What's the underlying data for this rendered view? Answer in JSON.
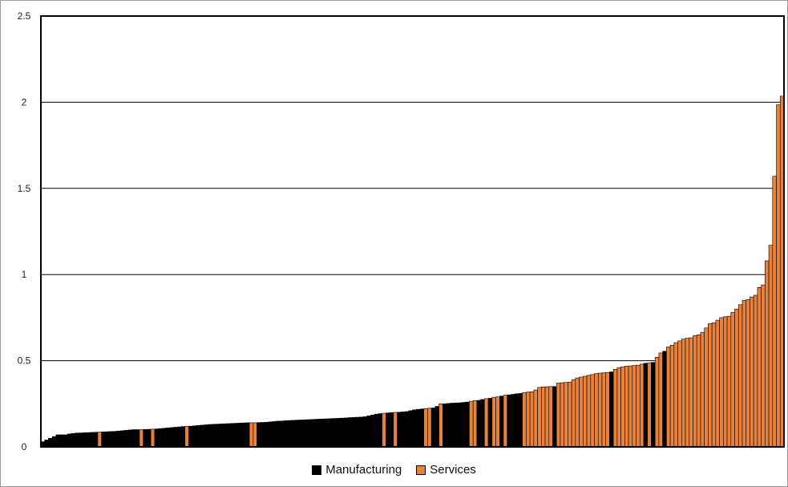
{
  "chart_data": {
    "type": "bar",
    "ylim": [
      0,
      2.5
    ],
    "yticks": [
      "0",
      "0.5",
      "1",
      "1.5",
      "2",
      "2.5"
    ],
    "grid": true,
    "legend_position": "bottom-center",
    "series": [
      {
        "name": "Manufacturing",
        "color": "#000000"
      },
      {
        "name": "Services",
        "color": "#e8823a"
      }
    ],
    "bars": [
      {
        "s": 0,
        "v": 0.03
      },
      {
        "s": 0,
        "v": 0.04
      },
      {
        "s": 0,
        "v": 0.05
      },
      {
        "s": 0,
        "v": 0.06
      },
      {
        "s": 0,
        "v": 0.07
      },
      {
        "s": 0,
        "v": 0.07
      },
      {
        "s": 0,
        "v": 0.07
      },
      {
        "s": 0,
        "v": 0.075
      },
      {
        "s": 0,
        "v": 0.078
      },
      {
        "s": 0,
        "v": 0.08
      },
      {
        "s": 0,
        "v": 0.081
      },
      {
        "s": 0,
        "v": 0.082
      },
      {
        "s": 0,
        "v": 0.083
      },
      {
        "s": 0,
        "v": 0.084
      },
      {
        "s": 0,
        "v": 0.085
      },
      {
        "s": 1,
        "v": 0.086
      },
      {
        "s": 0,
        "v": 0.087
      },
      {
        "s": 0,
        "v": 0.088
      },
      {
        "s": 0,
        "v": 0.089
      },
      {
        "s": 0,
        "v": 0.09
      },
      {
        "s": 0,
        "v": 0.092
      },
      {
        "s": 0,
        "v": 0.094
      },
      {
        "s": 0,
        "v": 0.096
      },
      {
        "s": 0,
        "v": 0.098
      },
      {
        "s": 0,
        "v": 0.1
      },
      {
        "s": 0,
        "v": 0.1
      },
      {
        "s": 1,
        "v": 0.1
      },
      {
        "s": 0,
        "v": 0.101
      },
      {
        "s": 0,
        "v": 0.102
      },
      {
        "s": 1,
        "v": 0.103
      },
      {
        "s": 0,
        "v": 0.104
      },
      {
        "s": 0,
        "v": 0.106
      },
      {
        "s": 0,
        "v": 0.108
      },
      {
        "s": 0,
        "v": 0.11
      },
      {
        "s": 0,
        "v": 0.112
      },
      {
        "s": 0,
        "v": 0.114
      },
      {
        "s": 0,
        "v": 0.116
      },
      {
        "s": 0,
        "v": 0.118
      },
      {
        "s": 1,
        "v": 0.12
      },
      {
        "s": 0,
        "v": 0.12
      },
      {
        "s": 0,
        "v": 0.122
      },
      {
        "s": 0,
        "v": 0.124
      },
      {
        "s": 0,
        "v": 0.126
      },
      {
        "s": 0,
        "v": 0.128
      },
      {
        "s": 0,
        "v": 0.13
      },
      {
        "s": 0,
        "v": 0.131
      },
      {
        "s": 0,
        "v": 0.132
      },
      {
        "s": 0,
        "v": 0.133
      },
      {
        "s": 0,
        "v": 0.134
      },
      {
        "s": 0,
        "v": 0.135
      },
      {
        "s": 0,
        "v": 0.136
      },
      {
        "s": 0,
        "v": 0.137
      },
      {
        "s": 0,
        "v": 0.138
      },
      {
        "s": 0,
        "v": 0.139
      },
      {
        "s": 0,
        "v": 0.14
      },
      {
        "s": 1,
        "v": 0.14
      },
      {
        "s": 1,
        "v": 0.14
      },
      {
        "s": 0,
        "v": 0.141
      },
      {
        "s": 0,
        "v": 0.142
      },
      {
        "s": 0,
        "v": 0.143
      },
      {
        "s": 0,
        "v": 0.145
      },
      {
        "s": 0,
        "v": 0.147
      },
      {
        "s": 0,
        "v": 0.149
      },
      {
        "s": 0,
        "v": 0.15
      },
      {
        "s": 0,
        "v": 0.152
      },
      {
        "s": 0,
        "v": 0.153
      },
      {
        "s": 0,
        "v": 0.154
      },
      {
        "s": 0,
        "v": 0.155
      },
      {
        "s": 0,
        "v": 0.156
      },
      {
        "s": 0,
        "v": 0.157
      },
      {
        "s": 0,
        "v": 0.158
      },
      {
        "s": 0,
        "v": 0.159
      },
      {
        "s": 0,
        "v": 0.16
      },
      {
        "s": 0,
        "v": 0.161
      },
      {
        "s": 0,
        "v": 0.162
      },
      {
        "s": 0,
        "v": 0.163
      },
      {
        "s": 0,
        "v": 0.164
      },
      {
        "s": 0,
        "v": 0.165
      },
      {
        "s": 0,
        "v": 0.166
      },
      {
        "s": 0,
        "v": 0.167
      },
      {
        "s": 0,
        "v": 0.168
      },
      {
        "s": 0,
        "v": 0.17
      },
      {
        "s": 0,
        "v": 0.171
      },
      {
        "s": 0,
        "v": 0.172
      },
      {
        "s": 0,
        "v": 0.173
      },
      {
        "s": 0,
        "v": 0.175
      },
      {
        "s": 0,
        "v": 0.18
      },
      {
        "s": 0,
        "v": 0.185
      },
      {
        "s": 0,
        "v": 0.19
      },
      {
        "s": 0,
        "v": 0.193
      },
      {
        "s": 1,
        "v": 0.195
      },
      {
        "s": 0,
        "v": 0.197
      },
      {
        "s": 0,
        "v": 0.199
      },
      {
        "s": 1,
        "v": 0.2
      },
      {
        "s": 0,
        "v": 0.201
      },
      {
        "s": 0,
        "v": 0.203
      },
      {
        "s": 0,
        "v": 0.205
      },
      {
        "s": 0,
        "v": 0.21
      },
      {
        "s": 0,
        "v": 0.215
      },
      {
        "s": 0,
        "v": 0.218
      },
      {
        "s": 0,
        "v": 0.22
      },
      {
        "s": 1,
        "v": 0.222
      },
      {
        "s": 1,
        "v": 0.224
      },
      {
        "s": 0,
        "v": 0.226
      },
      {
        "s": 0,
        "v": 0.235
      },
      {
        "s": 1,
        "v": 0.25
      },
      {
        "s": 0,
        "v": 0.25
      },
      {
        "s": 0,
        "v": 0.252
      },
      {
        "s": 0,
        "v": 0.254
      },
      {
        "s": 0,
        "v": 0.255
      },
      {
        "s": 0,
        "v": 0.256
      },
      {
        "s": 0,
        "v": 0.258
      },
      {
        "s": 0,
        "v": 0.26
      },
      {
        "s": 1,
        "v": 0.265
      },
      {
        "s": 1,
        "v": 0.268
      },
      {
        "s": 0,
        "v": 0.27
      },
      {
        "s": 0,
        "v": 0.275
      },
      {
        "s": 1,
        "v": 0.28
      },
      {
        "s": 0,
        "v": 0.282
      },
      {
        "s": 1,
        "v": 0.288
      },
      {
        "s": 1,
        "v": 0.29
      },
      {
        "s": 0,
        "v": 0.295
      },
      {
        "s": 1,
        "v": 0.3
      },
      {
        "s": 0,
        "v": 0.302
      },
      {
        "s": 0,
        "v": 0.305
      },
      {
        "s": 0,
        "v": 0.308
      },
      {
        "s": 0,
        "v": 0.31
      },
      {
        "s": 1,
        "v": 0.315
      },
      {
        "s": 1,
        "v": 0.318
      },
      {
        "s": 1,
        "v": 0.32
      },
      {
        "s": 1,
        "v": 0.33
      },
      {
        "s": 1,
        "v": 0.345
      },
      {
        "s": 1,
        "v": 0.348
      },
      {
        "s": 1,
        "v": 0.349
      },
      {
        "s": 1,
        "v": 0.35
      },
      {
        "s": 0,
        "v": 0.35
      },
      {
        "s": 1,
        "v": 0.37
      },
      {
        "s": 1,
        "v": 0.372
      },
      {
        "s": 1,
        "v": 0.374
      },
      {
        "s": 1,
        "v": 0.376
      },
      {
        "s": 1,
        "v": 0.39
      },
      {
        "s": 1,
        "v": 0.4
      },
      {
        "s": 1,
        "v": 0.405
      },
      {
        "s": 1,
        "v": 0.41
      },
      {
        "s": 1,
        "v": 0.415
      },
      {
        "s": 1,
        "v": 0.42
      },
      {
        "s": 1,
        "v": 0.425
      },
      {
        "s": 1,
        "v": 0.428
      },
      {
        "s": 1,
        "v": 0.43
      },
      {
        "s": 1,
        "v": 0.432
      },
      {
        "s": 0,
        "v": 0.435
      },
      {
        "s": 1,
        "v": 0.45
      },
      {
        "s": 1,
        "v": 0.46
      },
      {
        "s": 1,
        "v": 0.465
      },
      {
        "s": 1,
        "v": 0.468
      },
      {
        "s": 1,
        "v": 0.47
      },
      {
        "s": 1,
        "v": 0.472
      },
      {
        "s": 1,
        "v": 0.474
      },
      {
        "s": 1,
        "v": 0.48
      },
      {
        "s": 0,
        "v": 0.485
      },
      {
        "s": 1,
        "v": 0.488
      },
      {
        "s": 0,
        "v": 0.49
      },
      {
        "s": 1,
        "v": 0.52
      },
      {
        "s": 1,
        "v": 0.545
      },
      {
        "s": 0,
        "v": 0.555
      },
      {
        "s": 1,
        "v": 0.58
      },
      {
        "s": 1,
        "v": 0.59
      },
      {
        "s": 1,
        "v": 0.605
      },
      {
        "s": 1,
        "v": 0.615
      },
      {
        "s": 1,
        "v": 0.625
      },
      {
        "s": 1,
        "v": 0.63
      },
      {
        "s": 1,
        "v": 0.633
      },
      {
        "s": 1,
        "v": 0.645
      },
      {
        "s": 1,
        "v": 0.65
      },
      {
        "s": 1,
        "v": 0.665
      },
      {
        "s": 1,
        "v": 0.69
      },
      {
        "s": 1,
        "v": 0.715
      },
      {
        "s": 1,
        "v": 0.72
      },
      {
        "s": 1,
        "v": 0.735
      },
      {
        "s": 1,
        "v": 0.75
      },
      {
        "s": 1,
        "v": 0.755
      },
      {
        "s": 1,
        "v": 0.758
      },
      {
        "s": 1,
        "v": 0.78
      },
      {
        "s": 1,
        "v": 0.8
      },
      {
        "s": 1,
        "v": 0.825
      },
      {
        "s": 1,
        "v": 0.85
      },
      {
        "s": 1,
        "v": 0.855
      },
      {
        "s": 1,
        "v": 0.87
      },
      {
        "s": 1,
        "v": 0.88
      },
      {
        "s": 1,
        "v": 0.925
      },
      {
        "s": 1,
        "v": 0.94
      },
      {
        "s": 1,
        "v": 1.08
      },
      {
        "s": 1,
        "v": 1.17
      },
      {
        "s": 1,
        "v": 1.57
      },
      {
        "s": 1,
        "v": 1.985
      },
      {
        "s": 1,
        "v": 2.035
      }
    ]
  }
}
